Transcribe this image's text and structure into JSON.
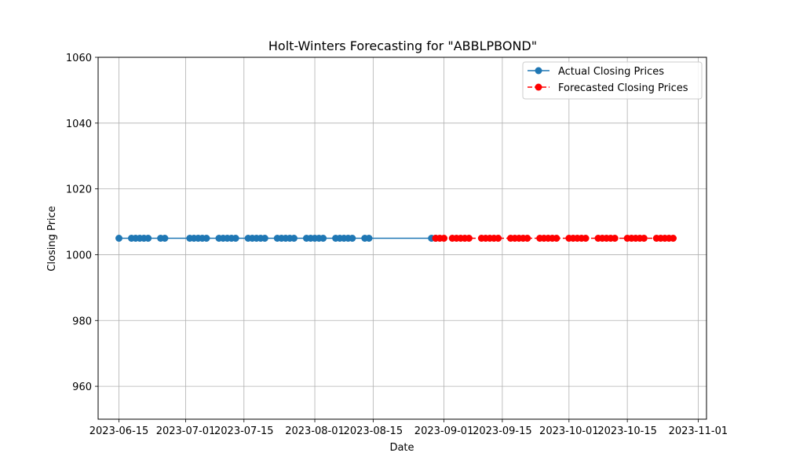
{
  "chart_data": {
    "type": "line",
    "title": "Holt-Winters Forecasting for \"ABBLPBOND\"",
    "xlabel": "Date",
    "ylabel": "Closing Price",
    "xlim": [
      "2023-06-10",
      "2023-11-03"
    ],
    "ylim": [
      950,
      1060
    ],
    "x_ticks": [
      "2023-06-15",
      "2023-07-01",
      "2023-07-15",
      "2023-08-01",
      "2023-08-15",
      "2023-09-01",
      "2023-09-15",
      "2023-10-01",
      "2023-10-15",
      "2023-11-01"
    ],
    "y_ticks": [
      960,
      980,
      1000,
      1020,
      1040,
      1060
    ],
    "grid": true,
    "legend_position": "top-right",
    "series": [
      {
        "name": "Actual Closing Prices",
        "color": "#1f77b4",
        "linestyle": "solid",
        "marker": "circle",
        "points": [
          [
            "2023-06-15",
            1005
          ],
          [
            "2023-06-18",
            1005
          ],
          [
            "2023-06-19",
            1005
          ],
          [
            "2023-06-20",
            1005
          ],
          [
            "2023-06-21",
            1005
          ],
          [
            "2023-06-22",
            1005
          ],
          [
            "2023-06-25",
            1005
          ],
          [
            "2023-06-26",
            1005
          ],
          [
            "2023-07-02",
            1005
          ],
          [
            "2023-07-03",
            1005
          ],
          [
            "2023-07-04",
            1005
          ],
          [
            "2023-07-05",
            1005
          ],
          [
            "2023-07-06",
            1005
          ],
          [
            "2023-07-09",
            1005
          ],
          [
            "2023-07-10",
            1005
          ],
          [
            "2023-07-11",
            1005
          ],
          [
            "2023-07-12",
            1005
          ],
          [
            "2023-07-13",
            1005
          ],
          [
            "2023-07-16",
            1005
          ],
          [
            "2023-07-17",
            1005
          ],
          [
            "2023-07-18",
            1005
          ],
          [
            "2023-07-19",
            1005
          ],
          [
            "2023-07-20",
            1005
          ],
          [
            "2023-07-23",
            1005
          ],
          [
            "2023-07-24",
            1005
          ],
          [
            "2023-07-25",
            1005
          ],
          [
            "2023-07-26",
            1005
          ],
          [
            "2023-07-27",
            1005
          ],
          [
            "2023-07-30",
            1005
          ],
          [
            "2023-07-31",
            1005
          ],
          [
            "2023-08-01",
            1005
          ],
          [
            "2023-08-02",
            1005
          ],
          [
            "2023-08-03",
            1005
          ],
          [
            "2023-08-06",
            1005
          ],
          [
            "2023-08-07",
            1005
          ],
          [
            "2023-08-08",
            1005
          ],
          [
            "2023-08-09",
            1005
          ],
          [
            "2023-08-10",
            1005
          ],
          [
            "2023-08-13",
            1005
          ],
          [
            "2023-08-14",
            1005
          ],
          [
            "2023-08-29",
            1005
          ],
          [
            "2023-08-30",
            1005
          ]
        ]
      },
      {
        "name": "Forecasted Closing Prices",
        "color": "#ff0000",
        "linestyle": "dashed",
        "marker": "circle",
        "points": [
          [
            "2023-08-30",
            1005
          ],
          [
            "2023-08-31",
            1005
          ],
          [
            "2023-09-01",
            1005
          ],
          [
            "2023-09-03",
            1005
          ],
          [
            "2023-09-04",
            1005
          ],
          [
            "2023-09-05",
            1005
          ],
          [
            "2023-09-06",
            1005
          ],
          [
            "2023-09-07",
            1005
          ],
          [
            "2023-09-10",
            1005
          ],
          [
            "2023-09-11",
            1005
          ],
          [
            "2023-09-12",
            1005
          ],
          [
            "2023-09-13",
            1005
          ],
          [
            "2023-09-14",
            1005
          ],
          [
            "2023-09-17",
            1005
          ],
          [
            "2023-09-18",
            1005
          ],
          [
            "2023-09-19",
            1005
          ],
          [
            "2023-09-20",
            1005
          ],
          [
            "2023-09-21",
            1005
          ],
          [
            "2023-09-24",
            1005
          ],
          [
            "2023-09-25",
            1005
          ],
          [
            "2023-09-26",
            1005
          ],
          [
            "2023-09-27",
            1005
          ],
          [
            "2023-09-28",
            1005
          ],
          [
            "2023-10-01",
            1005
          ],
          [
            "2023-10-02",
            1005
          ],
          [
            "2023-10-03",
            1005
          ],
          [
            "2023-10-04",
            1005
          ],
          [
            "2023-10-05",
            1005
          ],
          [
            "2023-10-08",
            1005
          ],
          [
            "2023-10-09",
            1005
          ],
          [
            "2023-10-10",
            1005
          ],
          [
            "2023-10-11",
            1005
          ],
          [
            "2023-10-12",
            1005
          ],
          [
            "2023-10-15",
            1005
          ],
          [
            "2023-10-16",
            1005
          ],
          [
            "2023-10-17",
            1005
          ],
          [
            "2023-10-18",
            1005
          ],
          [
            "2023-10-19",
            1005
          ],
          [
            "2023-10-22",
            1005
          ],
          [
            "2023-10-23",
            1005
          ],
          [
            "2023-10-24",
            1005
          ],
          [
            "2023-10-25",
            1005
          ],
          [
            "2023-10-26",
            1005
          ]
        ]
      }
    ]
  }
}
